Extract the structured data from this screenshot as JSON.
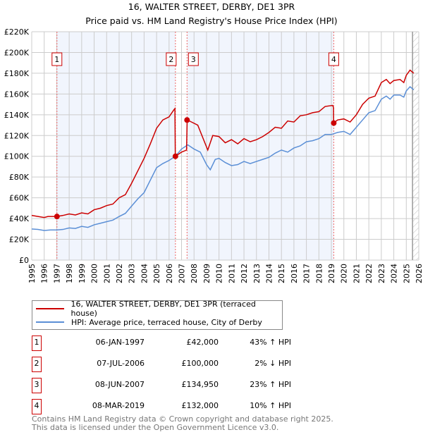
{
  "chart_data": {
    "type": "line",
    "title": "16, WALTER STREET, DERBY, DE1 3PR",
    "subtitle": "Price paid vs. HM Land Registry's House Price Index (HPI)",
    "xlim": [
      1995,
      2026
    ],
    "ylim": [
      0,
      220000
    ],
    "yticks": [
      {
        "v": 0,
        "label": "£0"
      },
      {
        "v": 20000,
        "label": "£20K"
      },
      {
        "v": 40000,
        "label": "£40K"
      },
      {
        "v": 60000,
        "label": "£60K"
      },
      {
        "v": 80000,
        "label": "£80K"
      },
      {
        "v": 100000,
        "label": "£100K"
      },
      {
        "v": 120000,
        "label": "£120K"
      },
      {
        "v": 140000,
        "label": "£140K"
      },
      {
        "v": 160000,
        "label": "£160K"
      },
      {
        "v": 180000,
        "label": "£180K"
      },
      {
        "v": 200000,
        "label": "£200K"
      },
      {
        "v": 220000,
        "label": "£220K"
      }
    ],
    "xticks": [
      "1995",
      "1996",
      "1997",
      "1998",
      "1999",
      "2000",
      "2001",
      "2002",
      "2003",
      "2004",
      "2005",
      "2006",
      "2007",
      "2008",
      "2009",
      "2010",
      "2011",
      "2012",
      "2013",
      "2014",
      "2015",
      "2016",
      "2017",
      "2018",
      "2019",
      "2020",
      "2021",
      "2022",
      "2023",
      "2024",
      "2025",
      "2026"
    ],
    "series": [
      {
        "name": "16, WALTER STREET, DERBY, DE1 3PR (terraced house)",
        "color": "#cc0000",
        "points": [
          [
            1995,
            43000
          ],
          [
            1995.5,
            42000
          ],
          [
            1996,
            41000
          ],
          [
            1996.3,
            42000
          ],
          [
            1997,
            42000
          ],
          [
            1997.5,
            43000
          ],
          [
            1998,
            44500
          ],
          [
            1998.5,
            43500
          ],
          [
            1999,
            45500
          ],
          [
            1999.5,
            44500
          ],
          [
            2000,
            48500
          ],
          [
            2000.5,
            50000
          ],
          [
            2001,
            52500
          ],
          [
            2001.5,
            54000
          ],
          [
            2002,
            60000
          ],
          [
            2002.5,
            63000
          ],
          [
            2003,
            74000
          ],
          [
            2003.5,
            86000
          ],
          [
            2004,
            98000
          ],
          [
            2004.5,
            112000
          ],
          [
            2005,
            127000
          ],
          [
            2005.5,
            135000
          ],
          [
            2006,
            138000
          ],
          [
            2006.4,
            145000
          ],
          [
            2006.47,
            146000
          ],
          [
            2006.5,
            100000
          ],
          [
            2007,
            104000
          ],
          [
            2007.4,
            106000
          ],
          [
            2007.45,
            134950
          ],
          [
            2007.8,
            133000
          ],
          [
            2008.3,
            130000
          ],
          [
            2008.7,
            118000
          ],
          [
            2009.1,
            106000
          ],
          [
            2009.5,
            120000
          ],
          [
            2010,
            119000
          ],
          [
            2010.5,
            113000
          ],
          [
            2011,
            116000
          ],
          [
            2011.5,
            112000
          ],
          [
            2012,
            117000
          ],
          [
            2012.5,
            114000
          ],
          [
            2013,
            116000
          ],
          [
            2013.5,
            119000
          ],
          [
            2014,
            123000
          ],
          [
            2014.5,
            128000
          ],
          [
            2015,
            127000
          ],
          [
            2015.5,
            134000
          ],
          [
            2016,
            133000
          ],
          [
            2016.5,
            139000
          ],
          [
            2017,
            140000
          ],
          [
            2017.5,
            142000
          ],
          [
            2018,
            143000
          ],
          [
            2018.5,
            148000
          ],
          [
            2019.1,
            149000
          ],
          [
            2019.17,
            147000
          ],
          [
            2019.18,
            132000
          ],
          [
            2019.5,
            135000
          ],
          [
            2020,
            136000
          ],
          [
            2020.5,
            133000
          ],
          [
            2021,
            140000
          ],
          [
            2021.5,
            150000
          ],
          [
            2022,
            156000
          ],
          [
            2022.5,
            158000
          ],
          [
            2023,
            171000
          ],
          [
            2023.4,
            174000
          ],
          [
            2023.7,
            170000
          ],
          [
            2024,
            173000
          ],
          [
            2024.5,
            174000
          ],
          [
            2024.8,
            171000
          ],
          [
            2025,
            178000
          ],
          [
            2025.3,
            183000
          ],
          [
            2025.6,
            180000
          ]
        ]
      },
      {
        "name": "HPI: Average price, terraced house, City of Derby",
        "color": "#5b8fd6",
        "points": [
          [
            1995,
            30000
          ],
          [
            1995.5,
            29500
          ],
          [
            1996,
            28500
          ],
          [
            1996.5,
            29000
          ],
          [
            1997,
            29000
          ],
          [
            1997.5,
            29500
          ],
          [
            1998,
            31000
          ],
          [
            1998.5,
            30500
          ],
          [
            1999,
            32500
          ],
          [
            1999.5,
            31500
          ],
          [
            2000,
            34000
          ],
          [
            2000.5,
            35500
          ],
          [
            2001,
            37000
          ],
          [
            2001.5,
            38500
          ],
          [
            2002,
            42000
          ],
          [
            2002.5,
            45000
          ],
          [
            2003,
            52000
          ],
          [
            2003.5,
            59000
          ],
          [
            2004,
            65000
          ],
          [
            2004.5,
            77000
          ],
          [
            2005,
            89000
          ],
          [
            2005.5,
            93000
          ],
          [
            2006,
            96000
          ],
          [
            2006.5,
            100000
          ],
          [
            2007,
            107000
          ],
          [
            2007.5,
            111000
          ],
          [
            2008,
            107000
          ],
          [
            2008.5,
            104000
          ],
          [
            2009,
            92000
          ],
          [
            2009.3,
            87000
          ],
          [
            2009.7,
            97000
          ],
          [
            2010,
            98000
          ],
          [
            2010.5,
            94000
          ],
          [
            2011,
            91000
          ],
          [
            2011.5,
            92000
          ],
          [
            2012,
            95000
          ],
          [
            2012.5,
            93000
          ],
          [
            2013,
            95000
          ],
          [
            2013.5,
            97000
          ],
          [
            2014,
            99000
          ],
          [
            2014.5,
            103000
          ],
          [
            2015,
            106000
          ],
          [
            2015.5,
            104000
          ],
          [
            2016,
            108000
          ],
          [
            2016.5,
            110000
          ],
          [
            2017,
            114000
          ],
          [
            2017.5,
            115000
          ],
          [
            2018,
            117000
          ],
          [
            2018.5,
            121000
          ],
          [
            2019,
            121000
          ],
          [
            2019.5,
            123000
          ],
          [
            2020,
            124000
          ],
          [
            2020.5,
            121000
          ],
          [
            2021,
            128000
          ],
          [
            2021.5,
            135000
          ],
          [
            2022,
            142000
          ],
          [
            2022.5,
            144000
          ],
          [
            2023,
            155000
          ],
          [
            2023.4,
            158000
          ],
          [
            2023.7,
            155000
          ],
          [
            2024,
            159000
          ],
          [
            2024.5,
            159000
          ],
          [
            2024.8,
            157000
          ],
          [
            2025,
            163000
          ],
          [
            2025.3,
            167000
          ],
          [
            2025.6,
            164000
          ]
        ]
      }
    ],
    "sales": [
      {
        "id": "1",
        "x": 1997.02,
        "y": 42000,
        "date": "06-JAN-1997",
        "price": "£42,000",
        "hpi": "43% ↑ HPI"
      },
      {
        "id": "2",
        "x": 2006.51,
        "y": 100000,
        "date": "07-JUL-2006",
        "price": "£100,000",
        "hpi": "2% ↓ HPI"
      },
      {
        "id": "3",
        "x": 2007.44,
        "y": 134950,
        "date": "08-JUN-2007",
        "price": "£134,950",
        "hpi": "23% ↑ HPI"
      },
      {
        "id": "4",
        "x": 2019.19,
        "y": 132000,
        "date": "08-MAR-2019",
        "price": "£132,000",
        "hpi": "10% ↑ HPI"
      }
    ],
    "shaded_ranges": [
      [
        1997.02,
        2006.51
      ],
      [
        2007.44,
        2019.19
      ]
    ],
    "forecast_start": 2025.5,
    "legend_placement": "bottom"
  },
  "footer": {
    "line1": "Contains HM Land Registry data © Crown copyright and database right 2025.",
    "line2": "This data is licensed under the Open Government Licence v3.0."
  }
}
